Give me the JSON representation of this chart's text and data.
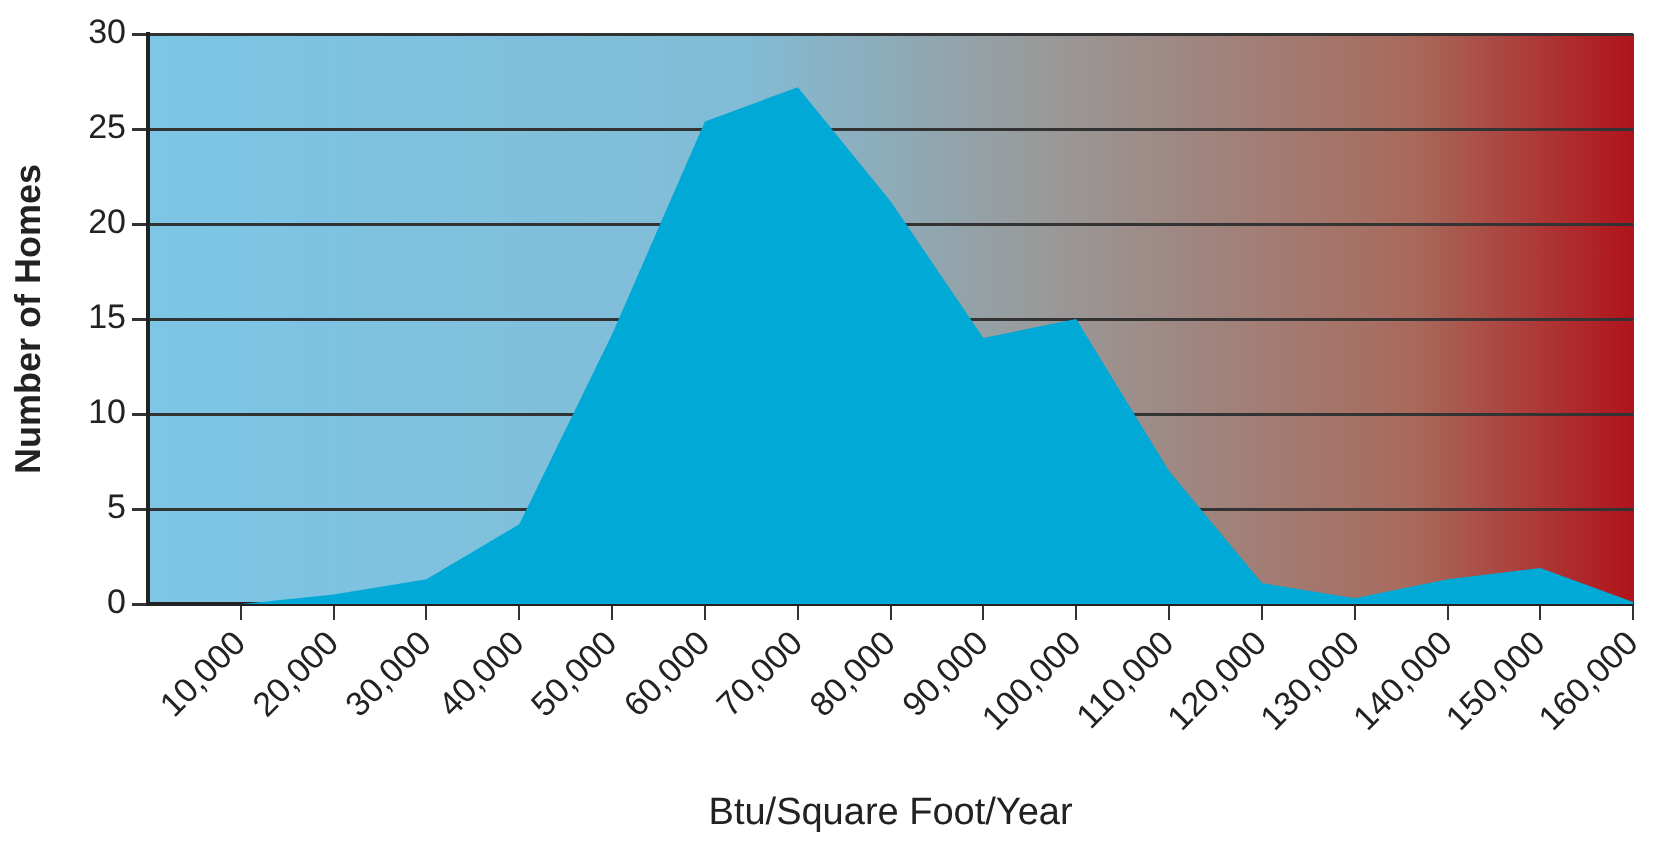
{
  "chart_data": {
    "type": "area",
    "xlabel": "Btu/Square Foot/Year",
    "ylabel": "Number of Homes",
    "x": [
      10000,
      20000,
      30000,
      40000,
      50000,
      60000,
      70000,
      80000,
      90000,
      100000,
      110000,
      120000,
      130000,
      140000,
      150000,
      160000
    ],
    "series": [
      {
        "color": "#00a9d6",
        "values": [
          0,
          0.5,
          1.3,
          4.2,
          14.2,
          25.4,
          27.2,
          21.2,
          14.0,
          15.0,
          7.0,
          1.1,
          0.3,
          1.3,
          1.9,
          0.1
        ]
      }
    ],
    "xlim": [
      0,
      160000
    ],
    "xticks": [
      {
        "value": 10000,
        "label": "10,000"
      },
      {
        "value": 20000,
        "label": "20,000"
      },
      {
        "value": 30000,
        "label": "30,000"
      },
      {
        "value": 40000,
        "label": "40,000"
      },
      {
        "value": 50000,
        "label": "50,000"
      },
      {
        "value": 60000,
        "label": "60,000"
      },
      {
        "value": 70000,
        "label": "70,000"
      },
      {
        "value": 80000,
        "label": "80,000"
      },
      {
        "value": 90000,
        "label": "90,000"
      },
      {
        "value": 100000,
        "label": "100,000"
      },
      {
        "value": 110000,
        "label": "110,000"
      },
      {
        "value": 120000,
        "label": "120,000"
      },
      {
        "value": 130000,
        "label": "130,000"
      },
      {
        "value": 140000,
        "label": "140,000"
      },
      {
        "value": 150000,
        "label": "150,000"
      },
      {
        "value": 160000,
        "label": "160,000"
      }
    ],
    "ylim": [
      0,
      30
    ],
    "yticks": [
      0,
      5,
      10,
      15,
      20,
      25,
      30
    ],
    "grid": "y",
    "legend": false,
    "marker": "none"
  }
}
